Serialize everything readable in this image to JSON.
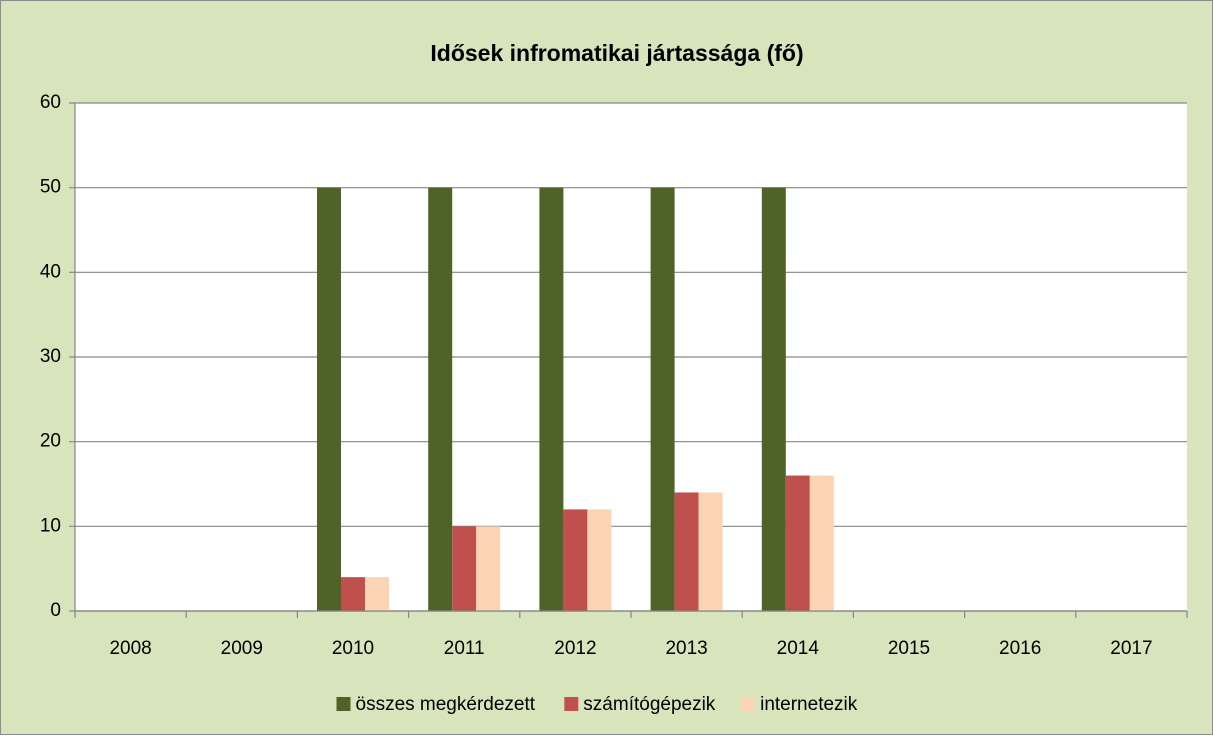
{
  "chart_data": {
    "type": "bar",
    "title": "Idősek infromatikai jártassága (fő)",
    "categories": [
      "2008",
      "2009",
      "2010",
      "2011",
      "2012",
      "2013",
      "2014",
      "2015",
      "2016",
      "2017"
    ],
    "series": [
      {
        "name": "összes megkérdezett",
        "color": "#4f6228",
        "values": [
          null,
          null,
          50,
          50,
          50,
          50,
          50,
          null,
          null,
          null
        ]
      },
      {
        "name": "számítógépezik",
        "color": "#c0504d",
        "values": [
          null,
          null,
          4,
          10,
          12,
          14,
          16,
          null,
          null,
          null
        ]
      },
      {
        "name": "internetezik",
        "color": "#fbd4b4",
        "values": [
          null,
          null,
          4,
          10,
          12,
          14,
          16,
          null,
          null,
          null
        ]
      }
    ],
    "ylim": [
      0,
      60
    ],
    "yticks": [
      0,
      10,
      20,
      30,
      40,
      50,
      60
    ],
    "grid": true,
    "legend": "bottom"
  }
}
